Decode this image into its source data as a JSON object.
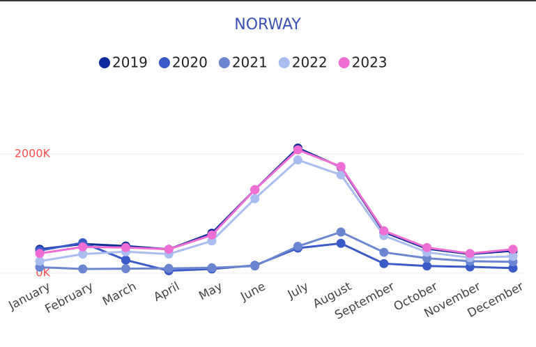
{
  "chart_data": {
    "type": "line",
    "title": "NORWAY",
    "categories": [
      "January",
      "February",
      "March",
      "April",
      "May",
      "June",
      "July",
      "August",
      "September",
      "October",
      "November",
      "December"
    ],
    "series": [
      {
        "name": "2019",
        "color": "#0b2a9c",
        "values": [
          400,
          490,
          455,
          400,
          670,
          1400,
          2100,
          1780,
          690,
          410,
          320,
          375
        ]
      },
      {
        "name": "2020",
        "color": "#3a5bc7",
        "values": [
          380,
          510,
          220,
          40,
          70,
          130,
          420,
          500,
          160,
          120,
          105,
          85
        ]
      },
      {
        "name": "2021",
        "color": "#6b86d1",
        "values": [
          100,
          70,
          75,
          80,
          90,
          120,
          450,
          690,
          350,
          250,
          200,
          190
        ]
      },
      {
        "name": "2022",
        "color": "#a9bdf0",
        "values": [
          200,
          320,
          360,
          320,
          540,
          1250,
          1900,
          1650,
          630,
          350,
          260,
          280
        ]
      },
      {
        "name": "2023",
        "color": "#f06ed4",
        "values": [
          330,
          440,
          430,
          400,
          640,
          1400,
          2070,
          1790,
          710,
          430,
          330,
          400
        ]
      }
    ],
    "ylim": [
      0,
      3000
    ],
    "yticks": [
      {
        "value": 0,
        "label": "0K"
      },
      {
        "value": 2000,
        "label": "2000K"
      }
    ],
    "grid": true,
    "legend": "top"
  }
}
